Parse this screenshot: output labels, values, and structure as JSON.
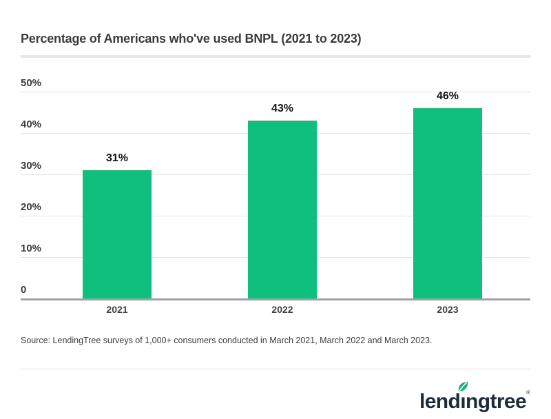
{
  "header": {
    "title": "Percentage of Americans who've used BNPL (2021 to 2023)"
  },
  "chart_data": {
    "type": "bar",
    "title": "Percentage of Americans who've used BNPL (2021 to 2023)",
    "categories": [
      "2021",
      "2022",
      "2023"
    ],
    "values": [
      31,
      43,
      46
    ],
    "value_labels": [
      "31%",
      "43%",
      "46%"
    ],
    "y_ticks": [
      {
        "value": 50,
        "label": "50%"
      },
      {
        "value": 40,
        "label": "40%"
      },
      {
        "value": 30,
        "label": "30%"
      },
      {
        "value": 20,
        "label": "20%"
      },
      {
        "value": 10,
        "label": "10%"
      },
      {
        "value": 0,
        "label": "0"
      }
    ],
    "ylim": [
      0,
      50
    ],
    "grid": true,
    "legend": false,
    "xlabel": "",
    "ylabel": "",
    "bar_color": "#0ebf7d"
  },
  "source": {
    "text": "Source: LendingTree surveys of 1,000+ consumers conducted in March 2021, March 2022 and March 2023."
  },
  "branding": {
    "logo_pre": "lend",
    "logo_dotless_i": "ı",
    "logo_post": "ngtree",
    "registered_mark": "®"
  },
  "colors": {
    "bar": "#0ebf7d",
    "grid_line": "#e3e3e3",
    "axis_line": "#a0a0a0",
    "separator_top": "#e7e7e7",
    "separator_bottom": "#dcdcdc",
    "text": "#3b3b3b",
    "value_text": "#141414",
    "logo_navy": "#1d2b3a",
    "leaf_green": "#19b573"
  }
}
